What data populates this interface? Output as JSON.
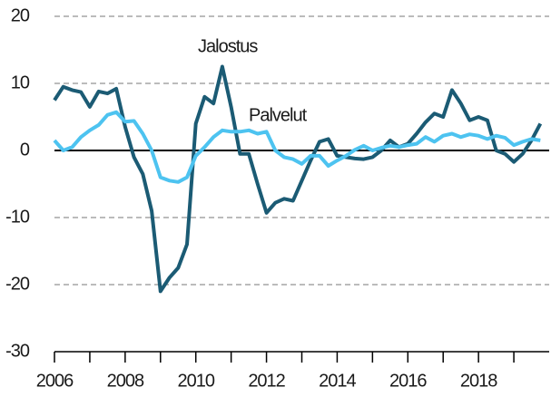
{
  "chart_data": {
    "type": "line",
    "x": [
      2006,
      2006.25,
      2006.5,
      2006.75,
      2007,
      2007.25,
      2007.5,
      2007.75,
      2008,
      2008.25,
      2008.5,
      2008.75,
      2009,
      2009.25,
      2009.5,
      2009.75,
      2010,
      2010.25,
      2010.5,
      2010.75,
      2011,
      2011.25,
      2011.5,
      2011.75,
      2012,
      2012.25,
      2012.5,
      2012.75,
      2013,
      2013.25,
      2013.5,
      2013.75,
      2014,
      2014.25,
      2014.5,
      2014.75,
      2015,
      2015.25,
      2015.5,
      2015.75,
      2016,
      2016.25,
      2016.5,
      2016.75,
      2017,
      2017.25,
      2017.5,
      2017.75,
      2018,
      2018.25,
      2018.5,
      2018.75,
      2019,
      2019.25,
      2019.5,
      2019.75
    ],
    "series": [
      {
        "name": "Jalostus",
        "color": "#1b5b74",
        "values": [
          7.5,
          9.5,
          9,
          8.7,
          6.5,
          8.8,
          8.5,
          9.2,
          3.5,
          -1,
          -3.5,
          -9,
          -21,
          -19,
          -17.5,
          -14,
          4,
          8,
          7,
          12.5,
          6.5,
          -0.5,
          -0.5,
          -5,
          -9.3,
          -7.8,
          -7.2,
          -7.5,
          -4.5,
          -1.5,
          1.3,
          1.7,
          -0.8,
          -1,
          -1.2,
          -1.3,
          -1,
          0,
          1.5,
          0.5,
          1,
          2.5,
          4.2,
          5.5,
          5,
          9,
          7,
          4.5,
          5,
          4.5,
          0,
          -0.5,
          -1.7,
          -0.5,
          1.5,
          4
        ]
      },
      {
        "name": "Palvelut",
        "color": "#4dc3f0",
        "values": [
          1.5,
          0,
          0.5,
          2,
          3,
          3.8,
          5.3,
          5.7,
          4.3,
          4.4,
          2.5,
          0,
          -4,
          -4.5,
          -4.7,
          -4,
          -0.8,
          0.5,
          2,
          3,
          2.8,
          2.8,
          3,
          2.5,
          2.8,
          0,
          -1,
          -1.3,
          -2,
          -0.8,
          -0.8,
          -2.3,
          -1.5,
          -0.8,
          0.1,
          0.7,
          0,
          0.4,
          0.7,
          0.5,
          0.8,
          1,
          2,
          1.3,
          2.2,
          2.5,
          2,
          2.4,
          2.2,
          1.7,
          2.2,
          1.9,
          0.8,
          1.3,
          1.7,
          1.5
        ]
      }
    ],
    "xlim": [
      2006,
      2020
    ],
    "xticks": [
      2006,
      2008,
      2010,
      2012,
      2014,
      2016,
      2018
    ],
    "xminor_ticks": [
      2007,
      2009,
      2011,
      2013,
      2015,
      2017,
      2019
    ],
    "ylim": [
      -30,
      20
    ],
    "yticks": [
      -30,
      -20,
      -10,
      0,
      10,
      20
    ],
    "grid": true
  }
}
